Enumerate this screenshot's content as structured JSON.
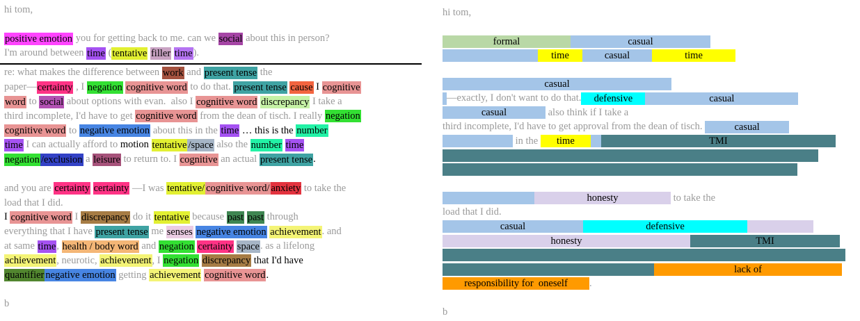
{
  "left": {
    "blocks": [
      [
        [
          {
            "text": "hi tom,"
          }
        ]
      ],
      [
        [
          {
            "text": "positive emotion",
            "color": "#ff44ff"
          },
          {
            "text": " you for getting back to me. can we "
          },
          {
            "text": "social",
            "color": "#a545a5"
          },
          {
            "text": " about this in person?"
          }
        ],
        [
          {
            "text": "I'm around between "
          },
          {
            "text": "time",
            "color": "#a552f2"
          },
          {
            "text": " ("
          },
          {
            "text": "tentative",
            "color": "#e2f032"
          },
          {
            "text": " "
          },
          {
            "text": "filler",
            "color": "#c9a3c3"
          },
          {
            "text": " "
          },
          {
            "text": "time",
            "color": "#b574f2"
          },
          {
            "text": ")."
          }
        ]
      ],
      [
        [
          {
            "text": "re: what makes the difference between "
          },
          {
            "text": "work",
            "color": "#a4523f"
          },
          {
            "text": " and "
          },
          {
            "text": "present tense",
            "color": "#3fa3a3"
          },
          {
            "text": " the"
          }
        ],
        [
          {
            "text": "paper—"
          },
          {
            "text": "certainty",
            "color": "#ff3385"
          },
          {
            "text": " , I "
          },
          {
            "text": "negation",
            "color": "#33e033"
          },
          {
            "text": " "
          },
          {
            "text": "cognitive word",
            "color": "#e89494"
          },
          {
            "text": " to do that. "
          },
          {
            "text": "present tense",
            "color": "#3fa3a3"
          },
          {
            "text": " "
          },
          {
            "text": "cause",
            "color": "#f2643f"
          },
          {
            "text": " I ",
            "ink": "#000"
          },
          {
            "text": "cognitive",
            "color": "#e89494"
          }
        ],
        [
          {
            "text": "word",
            "color": "#e89494"
          },
          {
            "text": " to "
          },
          {
            "text": "social",
            "color": "#b352b3"
          },
          {
            "text": " about options with evan.  also I "
          },
          {
            "text": "cognitive word",
            "color": "#e89494"
          },
          {
            "text": " "
          },
          {
            "text": "discrepancy",
            "color": "#c6f2a6"
          },
          {
            "text": " I take a"
          }
        ],
        [
          {
            "text": "third incomplete, I'd have to get "
          },
          {
            "text": "cognitive word",
            "color": "#e89494"
          },
          {
            "text": " from the dean of tisch. I really "
          },
          {
            "text": "negation",
            "color": "#33e033"
          }
        ],
        [
          {
            "text": "cognitive word",
            "color": "#e89494"
          },
          {
            "text": " to "
          },
          {
            "text": "negative emotion",
            "color": "#4785e3"
          },
          {
            "text": " about this in the "
          },
          {
            "text": "time",
            "color": "#a552f2"
          },
          {
            "text": " … this is the ",
            "ink": "#000"
          },
          {
            "text": "number",
            "color": "#22f2a6"
          }
        ],
        [
          {
            "text": "time",
            "color": "#a552f2"
          },
          {
            "text": " I can actually afford to "
          },
          {
            "text": "motion",
            "ink": "#000"
          },
          {
            "text": " "
          },
          {
            "text": "tentative",
            "color": "#e2f032"
          },
          {
            "text": "/space",
            "color": "#a6b5c6"
          },
          {
            "text": " also the "
          },
          {
            "text": "number",
            "color": "#22f2a6"
          },
          {
            "text": " "
          },
          {
            "text": "time",
            "color": "#a552f2"
          }
        ],
        [
          {
            "text": "negation",
            "color": "#33e033"
          },
          {
            "text": "/exclusion",
            "color": "#3342c6"
          },
          {
            "text": " a "
          },
          {
            "text": "leisure",
            "color": "#a6527a"
          },
          {
            "text": " to return to. I "
          },
          {
            "text": "cognitive",
            "color": "#e89494"
          },
          {
            "text": " an actual "
          },
          {
            "text": "present tense",
            "color": "#3fa3a3"
          },
          {
            "text": ".",
            "ink": "#000"
          }
        ]
      ],
      [
        [
          {
            "text": "and you are "
          },
          {
            "text": "certainty",
            "color": "#ff3385"
          },
          {
            "text": " "
          },
          {
            "text": "certainty",
            "color": "#ff3385"
          },
          {
            "text": " —I was "
          },
          {
            "text": "tentative/",
            "color": "#e2f032"
          },
          {
            "text": "cognitive word/",
            "color": "#e89494"
          },
          {
            "text": "anxiety",
            "color": "#e3333f"
          },
          {
            "text": " to take the"
          }
        ],
        [
          {
            "text": "load that I did."
          }
        ],
        [
          {
            "text": "I ",
            "ink": "#000"
          },
          {
            "text": "cognitive word",
            "color": "#e89494"
          },
          {
            "text": " I "
          },
          {
            "text": "discrepancy",
            "color": "#a67c45"
          },
          {
            "text": " do it "
          },
          {
            "text": "tentative",
            "color": "#e2f032"
          },
          {
            "text": " because "
          },
          {
            "text": "past",
            "color": "#3f8652"
          },
          {
            "text": " "
          },
          {
            "text": "past",
            "color": "#3f8652"
          },
          {
            "text": " through"
          }
        ],
        [
          {
            "text": "everything that I have "
          },
          {
            "text": "present tense",
            "color": "#3fa3a3"
          },
          {
            "text": " me "
          },
          {
            "text": "senses",
            "color": "#ebcce3"
          },
          {
            "text": " "
          },
          {
            "text": "negative emotion",
            "color": "#4785e3"
          },
          {
            "text": " "
          },
          {
            "text": "achievement",
            "color": "#f4f476"
          },
          {
            "text": ". and"
          }
        ],
        [
          {
            "text": "at same "
          },
          {
            "text": "time",
            "color": "#a552f2"
          },
          {
            "text": ", "
          },
          {
            "text": "health / body word",
            "color": "#f4b676"
          },
          {
            "text": " and "
          },
          {
            "text": "negation",
            "color": "#33e033"
          },
          {
            "text": " "
          },
          {
            "text": "certainty",
            "color": "#ff3385"
          },
          {
            "text": " "
          },
          {
            "text": "space",
            "color": "#a6b5c6"
          },
          {
            "text": ". as a lifelong"
          }
        ],
        [
          {
            "text": "achievement",
            "color": "#f4f476"
          },
          {
            "text": ", neurotic, "
          },
          {
            "text": "achievement",
            "color": "#f4f476"
          },
          {
            "text": ", I "
          },
          {
            "text": "negation",
            "color": "#33e033"
          },
          {
            "text": " "
          },
          {
            "text": "discrepancy",
            "color": "#a67c45"
          },
          {
            "text": " that I'd have",
            "ink": "#000"
          }
        ],
        [
          {
            "text": "quantifier",
            "color": "#52862f"
          },
          {
            "text": "negative emotion",
            "color": "#4785e3"
          },
          {
            "text": " getting "
          },
          {
            "text": "achievement",
            "color": "#f4f476"
          },
          {
            "text": " "
          },
          {
            "text": "cognitive word",
            "color": "#e89494"
          },
          {
            "text": ".",
            "ink": "#000"
          }
        ]
      ],
      [
        [
          {
            "text": "b"
          }
        ]
      ]
    ]
  },
  "right": {
    "blocks": [
      [
        [
          {
            "text": "hi tom,"
          }
        ]
      ],
      [
        [
          {
            "text": "formal",
            "color": "#b9d8a6"
          },
          {
            "text": "casual",
            "color": "#a4c5e8"
          }
        ],
        [
          {
            "color": "#a4c5e8"
          },
          {
            "text": "time",
            "color": "#ffff00"
          },
          {
            "text": "casual",
            "color": "#a4c5e8"
          },
          {
            "text": "time",
            "color": "#ffff00"
          }
        ]
      ],
      [
        [
          {
            "text": "casual",
            "color": "#a4c5e8"
          }
        ],
        [
          {
            "color": "#a4c5e8"
          },
          {
            "text": "—exactly, I don't want to do that."
          },
          {
            "text": "defensive",
            "color": "#00ffff"
          },
          {
            "text": "casual",
            "color": "#a4c5e8"
          }
        ],
        [
          {
            "text": "casual",
            "color": "#a4c5e8"
          },
          {
            "text": " also think if I take a"
          }
        ],
        [
          {
            "text": "third incomplete, I'd have to get approval from the dean of tisch. "
          },
          {
            "text": "casual",
            "color": "#a4c5e8"
          }
        ],
        [
          {
            "color": "#a4c5e8"
          },
          {
            "text": " in the "
          },
          {
            "text": "time",
            "color": "#ffff00"
          },
          {
            "color": "#a4c5e8"
          },
          {
            "text": "TMI",
            "color": "#4a7f87"
          }
        ],
        [
          {
            "color": "#4a7f87"
          }
        ],
        [
          {
            "color": "#4a7f87"
          }
        ]
      ],
      [
        [
          {
            "color": "#a4c5e8"
          },
          {
            "text": "honesty",
            "color": "#d9d0ea"
          },
          {
            "text": " to take the"
          }
        ],
        [
          {
            "text": "load that I did."
          }
        ],
        [
          {
            "text": "casual",
            "color": "#a4c5e8"
          },
          {
            "text": "defensive",
            "color": "#00ffff"
          },
          {
            "color": "#d9d0ea"
          }
        ],
        [
          {
            "text": "honesty",
            "color": "#d9d0ea"
          },
          {
            "text": "TMI",
            "color": "#4a7f87"
          }
        ],
        [
          {
            "color": "#4a7f87"
          }
        ],
        [
          {
            "color": "#4a7f87"
          },
          {
            "text": "lack of",
            "color": "#ff9a00"
          }
        ],
        [
          {
            "text": "responsibility for  oneself",
            "color": "#ff9a00"
          },
          {
            "text": "."
          }
        ]
      ],
      [
        [
          {
            "text": "b"
          }
        ]
      ]
    ]
  }
}
